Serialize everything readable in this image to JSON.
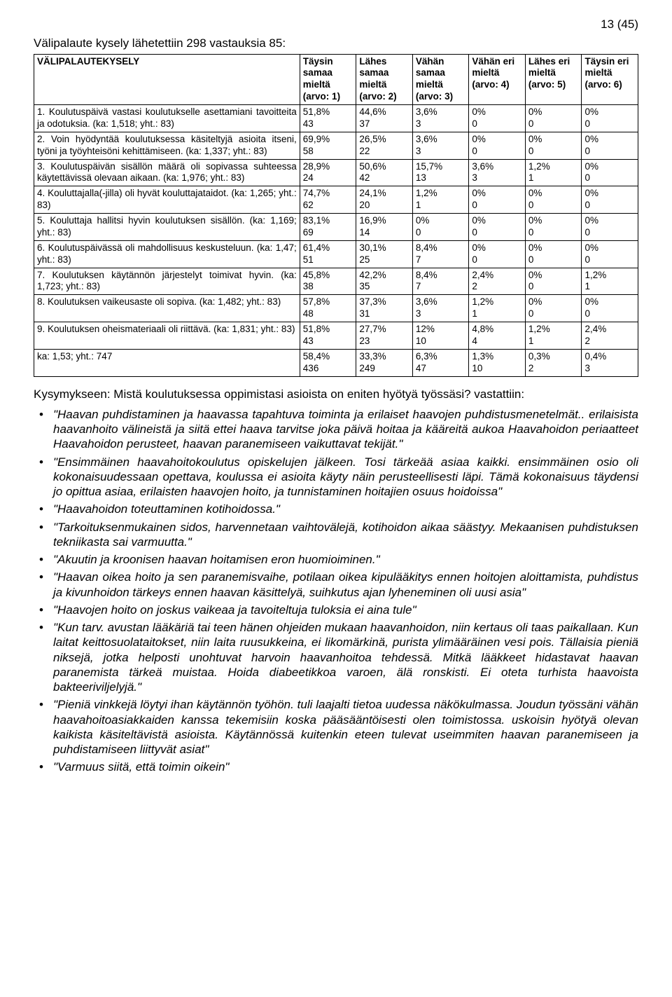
{
  "page_number": "13 (45)",
  "intro_line": "Välipalaute kysely lähetettiin 298 vastauksia 85:",
  "table": {
    "header_row": [
      "VÄLIPALAUTEKYSELY",
      "Täysin samaa mieltä (arvo: 1)",
      "Lähes samaa mieltä (arvo: 2)",
      "Vähän samaa mieltä (arvo: 3)",
      "Vähän eri mieltä (arvo: 4)",
      "Lähes eri mieltä (arvo: 5)",
      "Täysin eri mieltä (arvo: 6)"
    ],
    "rows": [
      {
        "q": "1. Koulutuspäivä vastasi koulutukselle asettamiani tavoitteita ja odotuksia. (ka: 1,518; yht.: 83)",
        "cells": [
          [
            "51,8%",
            "43"
          ],
          [
            "44,6%",
            "37"
          ],
          [
            "3,6%",
            "3"
          ],
          [
            "0%",
            "0"
          ],
          [
            "0%",
            "0"
          ],
          [
            "0%",
            "0"
          ]
        ]
      },
      {
        "q": "2. Voin hyödyntää koulutuksessa käsiteltyjä asioita itseni, työni ja työyhteisöni kehittämiseen. (ka: 1,337; yht.: 83)",
        "cells": [
          [
            "69,9%",
            "58"
          ],
          [
            "26,5%",
            "22"
          ],
          [
            "3,6%",
            "3"
          ],
          [
            "0%",
            "0"
          ],
          [
            "0%",
            "0"
          ],
          [
            "0%",
            "0"
          ]
        ]
      },
      {
        "q": "3. Koulutuspäivän sisällön määrä oli sopivassa suhteessa käytettävissä olevaan aikaan. (ka: 1,976; yht.: 83)",
        "cells": [
          [
            "28,9%",
            "24"
          ],
          [
            "50,6%",
            "42"
          ],
          [
            "15,7%",
            "13"
          ],
          [
            "3,6%",
            "3"
          ],
          [
            "1,2%",
            "1"
          ],
          [
            "0%",
            "0"
          ]
        ]
      },
      {
        "q": "4. Kouluttajalla(-jilla) oli hyvät kouluttajataidot. (ka: 1,265; yht.: 83)",
        "cells": [
          [
            "74,7%",
            "62"
          ],
          [
            "24,1%",
            "20"
          ],
          [
            "1,2%",
            "1"
          ],
          [
            "0%",
            "0"
          ],
          [
            "0%",
            "0"
          ],
          [
            "0%",
            "0"
          ]
        ]
      },
      {
        "q": "5. Kouluttaja hallitsi hyvin koulutuksen sisällön. (ka: 1,169; yht.: 83)",
        "cells": [
          [
            "83,1%",
            "69"
          ],
          [
            "16,9%",
            "14"
          ],
          [
            "0%",
            "0"
          ],
          [
            "0%",
            "0"
          ],
          [
            "0%",
            "0"
          ],
          [
            "0%",
            "0"
          ]
        ]
      },
      {
        "q": "6. Koulutuspäivässä oli mahdollisuus keskusteluun. (ka: 1,47; yht.: 83)",
        "cells": [
          [
            "61,4%",
            "51"
          ],
          [
            "30,1%",
            "25"
          ],
          [
            "8,4%",
            "7"
          ],
          [
            "0%",
            "0"
          ],
          [
            "0%",
            "0"
          ],
          [
            "0%",
            "0"
          ]
        ]
      },
      {
        "q": "7. Koulutuksen käytännön järjestelyt toimivat hyvin. (ka: 1,723; yht.: 83)",
        "cells": [
          [
            "45,8%",
            "38"
          ],
          [
            "42,2%",
            "35"
          ],
          [
            "8,4%",
            "7"
          ],
          [
            "2,4%",
            "2"
          ],
          [
            "0%",
            "0"
          ],
          [
            "1,2%",
            "1"
          ]
        ]
      },
      {
        "q": "8. Koulutuksen vaikeusaste oli sopiva. (ka: 1,482; yht.: 83)",
        "cells": [
          [
            "57,8%",
            "48"
          ],
          [
            "37,3%",
            "31"
          ],
          [
            "3,6%",
            "3"
          ],
          [
            "1,2%",
            "1"
          ],
          [
            "0%",
            "0"
          ],
          [
            "0%",
            "0"
          ]
        ]
      },
      {
        "q": "9. Koulutuksen oheismateriaali oli riittävä. (ka: 1,831; yht.: 83)",
        "cells": [
          [
            "51,8%",
            "43"
          ],
          [
            "27,7%",
            "23"
          ],
          [
            "12%",
            "10"
          ],
          [
            "4,8%",
            "4"
          ],
          [
            "1,2%",
            "1"
          ],
          [
            "2,4%",
            "2"
          ]
        ]
      },
      {
        "q": "ka: 1,53; yht.: 747",
        "cells": [
          [
            "58,4%",
            "436"
          ],
          [
            "33,3%",
            "249"
          ],
          [
            "6,3%",
            "47"
          ],
          [
            "1,3%",
            "10"
          ],
          [
            "0,3%",
            "2"
          ],
          [
            "0,4%",
            "3"
          ]
        ]
      }
    ]
  },
  "question_intro": "Kysymykseen: Mistä koulutuksessa oppimistasi asioista on eniten hyötyä työssäsi? vastattiin:",
  "bullets": [
    "\"Haavan puhdistaminen ja haavassa tapahtuva toiminta ja erilaiset haavojen puhdistusmenetelmät.. erilaisista haavanhoito välineistä ja siitä ettei haava tarvitse joka päivä hoitaa ja kääreitä aukoa Haavahoidon periaatteet Haavahoidon perusteet, haavan paranemiseen vaikuttavat tekijät.\"",
    "\"Ensimmäinen haavahoitokoulutus opiskelujen jälkeen. Tosi tärkeää asiaa kaikki. ensimmäinen osio oli kokonaisuudessaan opettava, koulussa ei asioita käyty näin perusteellisesti läpi. Tämä kokonaisuus täydensi jo opittua asiaa, erilaisten haavojen hoito, ja tunnistaminen hoitajien osuus hoidoissa\"",
    "\"Haavahoidon toteuttaminen kotihoidossa.\"",
    "\"Tarkoituksenmukainen sidos, harvennetaan vaihtovälejä, kotihoidon aikaa säästyy. Mekaanisen puhdistuksen tekniikasta sai varmuutta.\"",
    "\"Akuutin ja kroonisen haavan hoitamisen eron huomioiminen.\"",
    "\"Haavan oikea hoito ja sen paranemisvaihe, potilaan oikea kipulääkitys ennen hoitojen aloittamista, puhdistus ja kivunhoidon tärkeys ennen haavan käsittelyä, suihkutus ajan lyheneminen oli uusi asia\"",
    "\"Haavojen hoito on joskus vaikeaa ja tavoiteltuja tuloksia ei aina tule\"",
    "\"Kun tarv. avustan lääkäriä tai teen hänen ohjeiden mukaan haavanhoidon, niin kertaus oli taas paikallaan. Kun laitat keittosuolataitokset, niin laita ruusukkeina, ei likomärkinä, purista ylimääräinen vesi pois. Tällaisia pieniä niksejä, jotka helposti unohtuvat harvoin haavanhoitoa tehdessä. Mitkä lääkkeet hidastavat haavan paranemista tärkeä muistaa. Hoida diabeetikkoa varoen, älä ronskisti. Ei oteta turhista haavoista bakteeriviljelyjä.\"",
    "\"Pieniä vinkkejä löytyi ihan käytännön työhön.  tuli laajalti tietoa uudessa näkökulmassa. Joudun työssäni vähän haavahoitoasiakkaiden kanssa tekemisiin koska pääsääntöisesti olen toimistossa.  uskoisin hyötyä olevan kaikista käsiteltävistä asioista. Käytännössä kuitenkin eteen tulevat useimmiten haavan paranemiseen ja puhdistamiseen liittyvät asiat\"",
    "\"Varmuus siitä, että toimin oikein\""
  ]
}
